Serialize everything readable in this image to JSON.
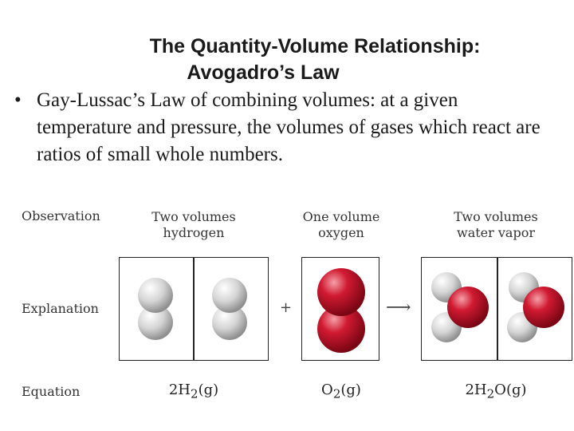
{
  "title": {
    "line1": "The Quantity-Volume Relationship:",
    "line2": "Avogadro’s Law"
  },
  "bullet": {
    "marker": "•",
    "text": "Gay-Lussac’s Law of combining volumes: at a given temperature and pressure, the volumes of gases which react are ratios of small whole numbers."
  },
  "figure": {
    "row_labels": {
      "observation": "Observation",
      "explanation": "Explanation",
      "equation": "Equation"
    },
    "columns": {
      "hydrogen": {
        "line1": "Two volumes",
        "line2": "hydrogen"
      },
      "oxygen": {
        "line1": "One volume",
        "line2": "oxygen"
      },
      "water": {
        "line1": "Two volumes",
        "line2": "water vapor"
      }
    },
    "symbols": {
      "plus": "+",
      "arrow": "⟶"
    },
    "equations": {
      "hydrogen": {
        "coef": "2H",
        "sub": "2",
        "state": "(g)"
      },
      "oxygen": {
        "coef": "O",
        "sub": "2",
        "state": "(g)"
      },
      "water": {
        "coef": "2H",
        "sub": "2",
        "rest": "O",
        "state": "(g)"
      }
    },
    "colors": {
      "hydrogen_atom": "#d4d4d4",
      "oxygen_atom": "#c8102e"
    }
  }
}
